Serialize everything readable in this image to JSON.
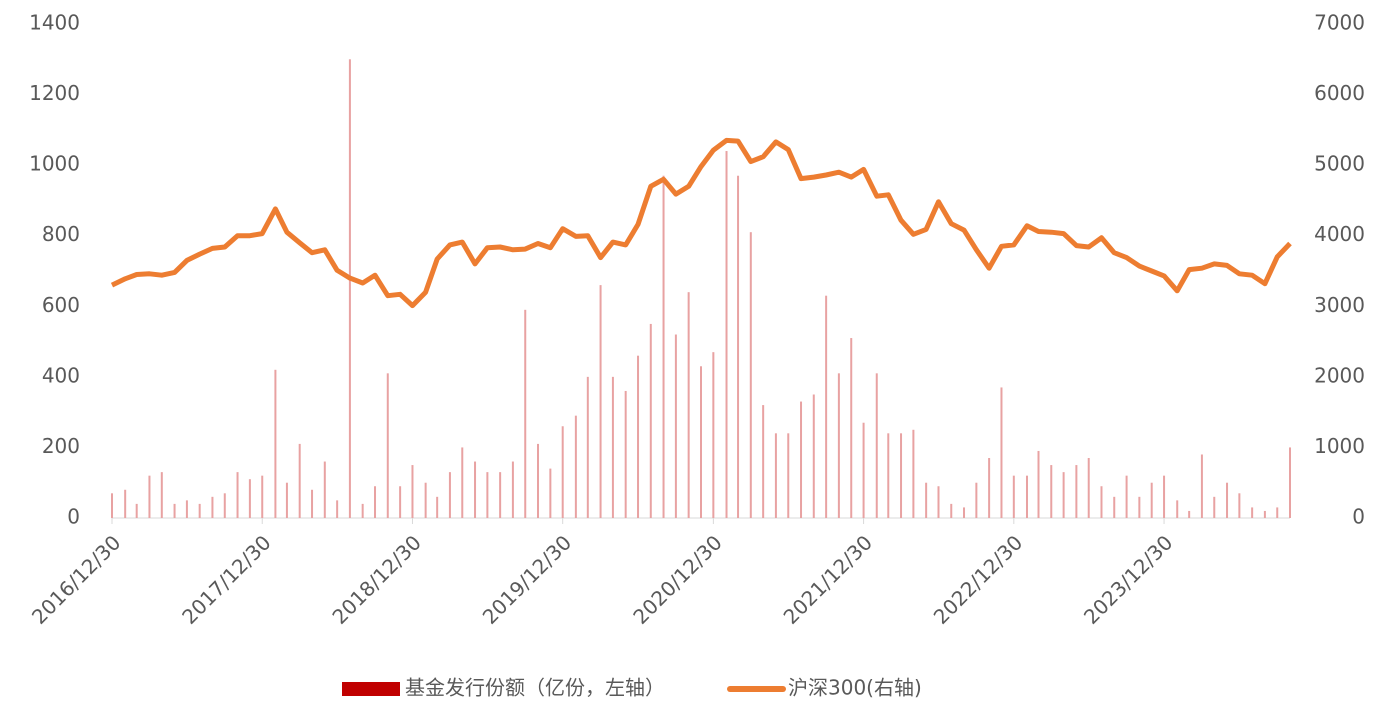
{
  "chart_data": {
    "type": "bar-line",
    "x": [
      "2016/12/30",
      "2017/01/31",
      "2017/02/28",
      "2017/03/31",
      "2017/04/30",
      "2017/05/31",
      "2017/06/30",
      "2017/07/31",
      "2017/08/31",
      "2017/09/30",
      "2017/10/31",
      "2017/11/30",
      "2017/12/30",
      "2018/01/31",
      "2018/02/28",
      "2018/03/31",
      "2018/04/30",
      "2018/05/31",
      "2018/06/30",
      "2018/07/31",
      "2018/08/31",
      "2018/09/30",
      "2018/10/31",
      "2018/11/30",
      "2018/12/30",
      "2019/01/31",
      "2019/02/28",
      "2019/03/31",
      "2019/04/30",
      "2019/05/31",
      "2019/06/30",
      "2019/07/31",
      "2019/08/31",
      "2019/09/30",
      "2019/10/31",
      "2019/11/30",
      "2019/12/30",
      "2020/01/31",
      "2020/02/29",
      "2020/03/31",
      "2020/04/30",
      "2020/05/31",
      "2020/06/30",
      "2020/07/31",
      "2020/08/31",
      "2020/09/30",
      "2020/10/31",
      "2020/11/30",
      "2020/12/30",
      "2021/01/31",
      "2021/02/28",
      "2021/03/31",
      "2021/04/30",
      "2021/05/31",
      "2021/06/30",
      "2021/07/31",
      "2021/08/31",
      "2021/09/30",
      "2021/10/31",
      "2021/11/30",
      "2021/12/30",
      "2022/01/31",
      "2022/02/28",
      "2022/03/31",
      "2022/04/30",
      "2022/05/31",
      "2022/06/30",
      "2022/07/31",
      "2022/08/31",
      "2022/09/30",
      "2022/10/31",
      "2022/11/30",
      "2022/12/30",
      "2023/01/31",
      "2023/02/28",
      "2023/03/31",
      "2023/04/30",
      "2023/05/31",
      "2023/06/30",
      "2023/07/31",
      "2023/08/31",
      "2023/09/30",
      "2023/10/31",
      "2023/11/30",
      "2023/12/30",
      "2024/01/31",
      "2024/02/29",
      "2024/03/31",
      "2024/04/30",
      "2024/05/31",
      "2024/06/30",
      "2024/07/31",
      "2024/08/31",
      "2024/09/30",
      "2024/10/31"
    ],
    "series": [
      {
        "name": "基金发行份额（亿份，左轴）",
        "color": "#e8a2a2",
        "legend_color": "#c00000",
        "kind": "bar",
        "values": [
          70,
          80,
          40,
          120,
          130,
          40,
          50,
          40,
          60,
          70,
          130,
          110,
          120,
          420,
          100,
          210,
          80,
          160,
          50,
          1300,
          40,
          90,
          410,
          90,
          150,
          100,
          60,
          130,
          200,
          160,
          130,
          130,
          160,
          590,
          210,
          140,
          260,
          290,
          400,
          660,
          400,
          360,
          460,
          550,
          970,
          520,
          640,
          430,
          470,
          1040,
          970,
          810,
          320,
          240,
          240,
          330,
          350,
          630,
          410,
          510,
          270,
          410,
          240,
          240,
          250,
          100,
          90,
          40,
          30,
          100,
          170,
          370,
          120,
          120,
          190,
          150,
          130,
          150,
          170,
          90,
          60,
          120,
          60,
          100,
          120,
          50,
          20,
          180,
          60,
          100,
          70,
          30,
          20,
          30,
          200
        ]
      },
      {
        "name": "沪深300(右轴)",
        "color": "#ed7d31",
        "kind": "line",
        "axis": "y2",
        "values": [
          3300,
          3390,
          3450,
          3460,
          3440,
          3480,
          3650,
          3740,
          3820,
          3840,
          4000,
          4000,
          4030,
          4380,
          4050,
          3900,
          3760,
          3800,
          3510,
          3400,
          3330,
          3440,
          3150,
          3170,
          3010,
          3200,
          3670,
          3870,
          3910,
          3600,
          3830,
          3840,
          3800,
          3810,
          3890,
          3830,
          4100,
          3990,
          4000,
          3690,
          3910,
          3870,
          4160,
          4700,
          4800,
          4590,
          4700,
          4980,
          5210,
          5350,
          5340,
          5050,
          5120,
          5330,
          5220,
          4810,
          4830,
          4860,
          4900,
          4830,
          4940,
          4560,
          4580,
          4220,
          4020,
          4090,
          4480,
          4170,
          4080,
          3800,
          3540,
          3850,
          3870,
          4140,
          4060,
          4050,
          4030,
          3860,
          3840,
          3970,
          3760,
          3690,
          3570,
          3500,
          3430,
          3220,
          3520,
          3540,
          3600,
          3580,
          3460,
          3440,
          3320,
          3700,
          3890
        ]
      }
    ],
    "xlim": [
      "2016/12/30",
      "2024/10/31"
    ],
    "xticks": [
      "2016/12/30",
      "2017/12/30",
      "2018/12/30",
      "2019/12/30",
      "2020/12/30",
      "2021/12/30",
      "2022/12/30",
      "2023/12/30"
    ],
    "ylim": [
      0,
      1400
    ],
    "yticks": [
      0,
      200,
      400,
      600,
      800,
      1000,
      1200,
      1400
    ],
    "y2lim": [
      0,
      7000
    ],
    "y2ticks": [
      0,
      1000,
      2000,
      3000,
      4000,
      5000,
      6000,
      7000
    ],
    "grid": false,
    "legend": "bottom"
  }
}
